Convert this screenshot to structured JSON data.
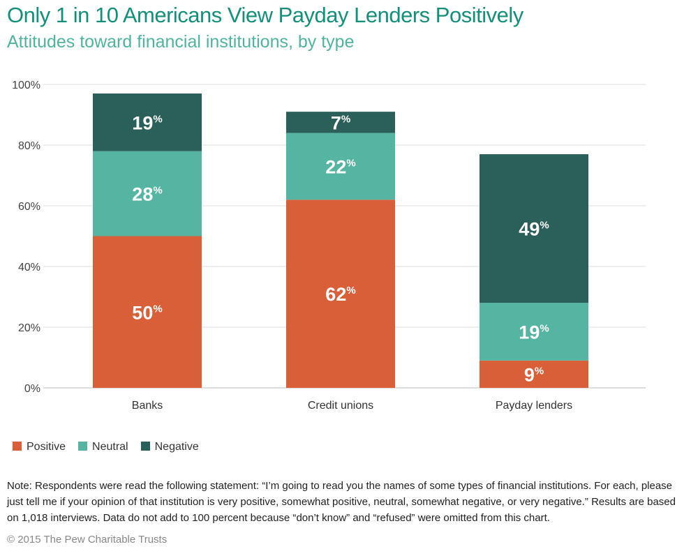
{
  "chart_data": {
    "type": "bar",
    "stacked": true,
    "title": "Only 1 in 10 Americans View Payday Lenders Positively",
    "subtitle": "Attitudes toward financial institutions, by type",
    "categories": [
      "Banks",
      "Credit unions",
      "Payday lenders"
    ],
    "series": [
      {
        "name": "Positive",
        "color": "#d95f38",
        "values": [
          50,
          62,
          9
        ]
      },
      {
        "name": "Neutral",
        "color": "#55b5a2",
        "values": [
          28,
          22,
          19
        ]
      },
      {
        "name": "Negative",
        "color": "#2b5f59",
        "values": [
          19,
          7,
          49
        ]
      }
    ],
    "ylim": [
      0,
      100
    ],
    "yticks": [
      "0%",
      "20%",
      "40%",
      "60%",
      "80%",
      "100%"
    ],
    "legend": "bottom-left",
    "grid": true
  },
  "note": "Note: Respondents were read the following statement: “I’m going to read you the names of some types of financial institutions. For each, please just tell me if your opinion of that institution is very positive, somewhat positive, neutral, somewhat negative, or very negative.” Results are based on 1,018 interviews. Data do not add to 100 percent because “don’t know” and “refused” were omitted from this chart.",
  "copyright": "© 2015 The Pew Charitable Trusts"
}
